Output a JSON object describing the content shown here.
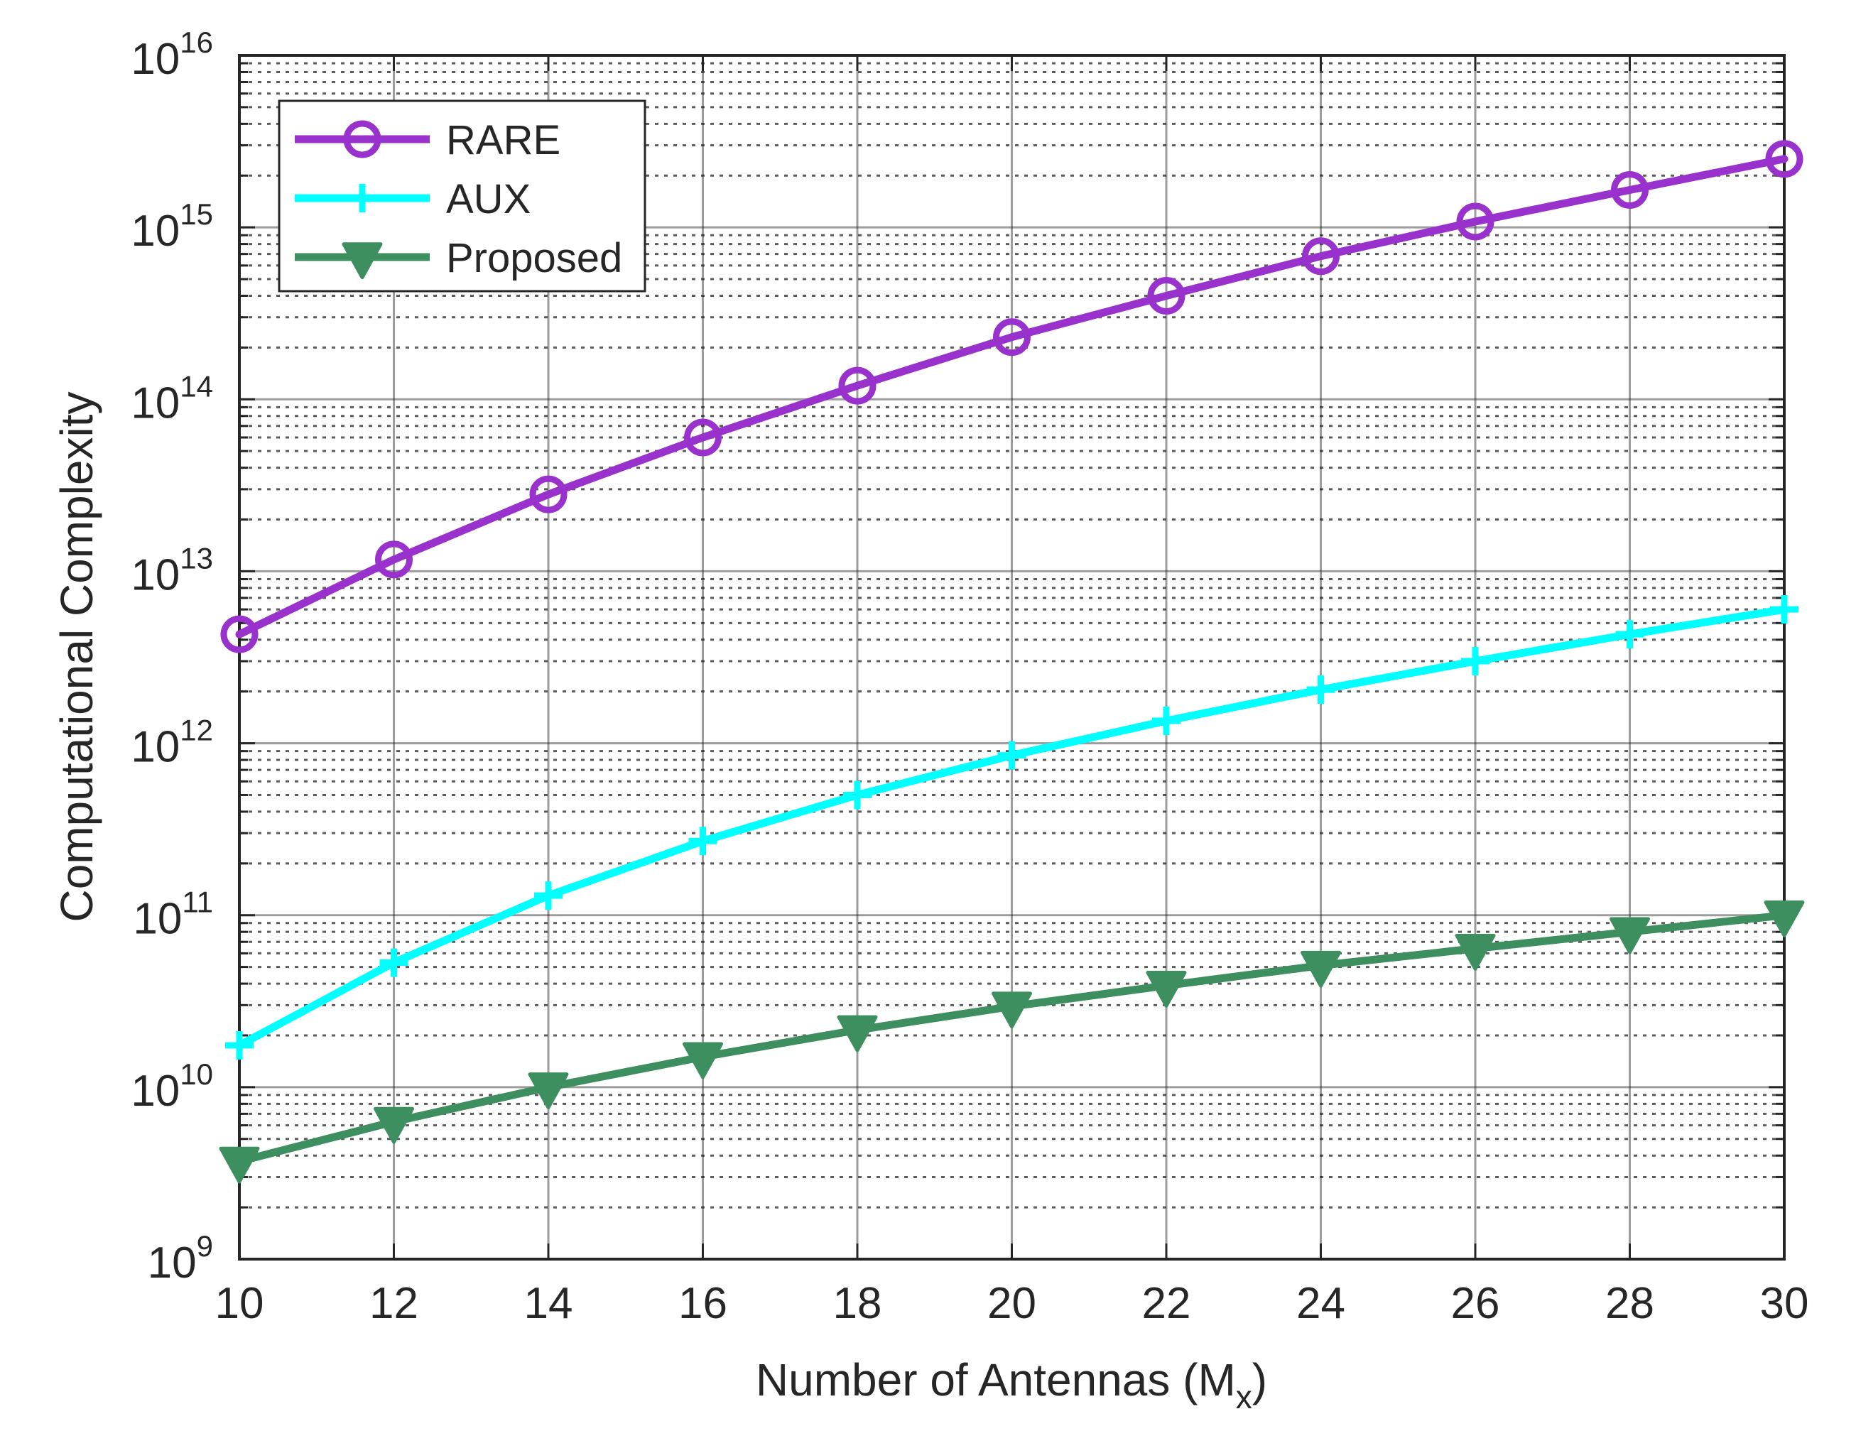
{
  "chart_data": {
    "type": "line",
    "title": "",
    "xlabel": "Number of Antennas (M",
    "xlabel_sub": "x",
    "xlabel_close": ")",
    "ylabel": "Computational Complexity",
    "x": [
      10,
      12,
      14,
      16,
      18,
      20,
      22,
      24,
      26,
      28,
      30
    ],
    "xlim": [
      10,
      30
    ],
    "ylim": [
      1000000000.0,
      1e+16
    ],
    "yscale": "log",
    "xticks": [
      "10",
      "12",
      "14",
      "16",
      "18",
      "20",
      "22",
      "24",
      "26",
      "28",
      "30"
    ],
    "yticks": [
      {
        "base": "10",
        "exp": "9",
        "value": 1000000000.0
      },
      {
        "base": "10",
        "exp": "10",
        "value": 10000000000.0
      },
      {
        "base": "10",
        "exp": "11",
        "value": 100000000000.0
      },
      {
        "base": "10",
        "exp": "12",
        "value": 1000000000000.0
      },
      {
        "base": "10",
        "exp": "13",
        "value": 10000000000000.0
      },
      {
        "base": "10",
        "exp": "14",
        "value": 100000000000000.0
      },
      {
        "base": "10",
        "exp": "15",
        "value": 1000000000000000.0
      },
      {
        "base": "10",
        "exp": "16",
        "value": 1e+16
      }
    ],
    "grid": true,
    "legend_position": "top-left",
    "series": [
      {
        "name": "RARE",
        "color": "#9932CC",
        "marker": "circle",
        "values": [
          4300000000000.0,
          11700000000000.0,
          28000000000000.0,
          60000000000000.0,
          120000000000000.0,
          230000000000000.0,
          400000000000000.0,
          680000000000000.0,
          1080000000000000.0,
          1650000000000000.0,
          2500000000000000.0
        ]
      },
      {
        "name": "AUX",
        "color": "#00FFFF",
        "marker": "plus",
        "values": [
          17500000000.0,
          53000000000.0,
          130000000000.0,
          270000000000.0,
          500000000000.0,
          850000000000.0,
          1350000000000.0,
          2050000000000.0,
          3000000000000.0,
          4300000000000.0,
          6000000000000.0
        ]
      },
      {
        "name": "Proposed",
        "color": "#3D8F5F",
        "marker": "triangle-down",
        "values": [
          3700000000.0,
          6300000000.0,
          10000000000.0,
          15000000000.0,
          21500000000.0,
          29500000000.0,
          39000000000.0,
          51000000000.0,
          64000000000.0,
          80000000000.0,
          100000000000.0
        ]
      }
    ]
  }
}
